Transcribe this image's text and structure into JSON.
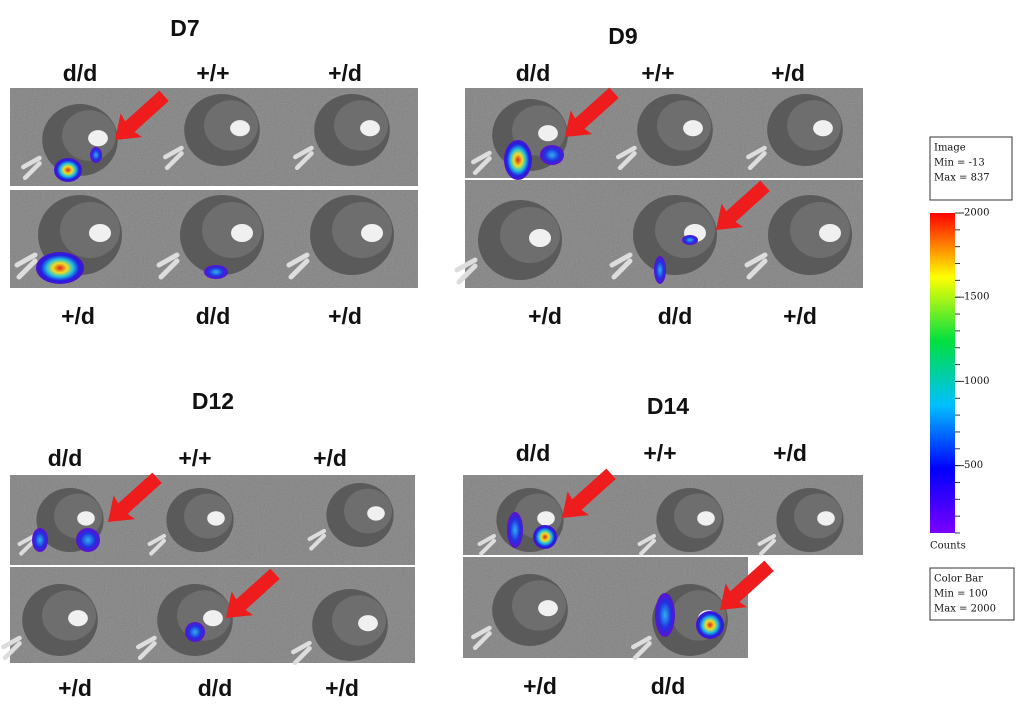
{
  "panels": [
    {
      "title": "D7",
      "top_labels": [
        "d/d",
        "+/+",
        "+/d"
      ],
      "bottom_labels": [
        "+/d",
        "d/d",
        "+/d"
      ]
    },
    {
      "title": "D9",
      "top_labels": [
        "d/d",
        "+/+",
        "+/d"
      ],
      "bottom_labels": [
        "+/d",
        "d/d",
        "+/d"
      ]
    },
    {
      "title": "D12",
      "top_labels": [
        "d/d",
        "+/+",
        "+/d"
      ],
      "bottom_labels": [
        "+/d",
        "d/d",
        "+/d"
      ]
    },
    {
      "title": "D14",
      "top_labels": [
        "d/d",
        "+/+",
        "+/d"
      ],
      "bottom_labels": [
        "+/d",
        "d/d"
      ]
    }
  ],
  "colorbar": {
    "image_box": [
      "Image",
      "Min = -13",
      "Max = 837"
    ],
    "ticks": [
      2000,
      1500,
      1000,
      500
    ],
    "range": [
      100,
      2000
    ],
    "unit": "Counts",
    "bar_box": [
      "Color Bar",
      "Min = 100",
      "Max = 2000"
    ]
  }
}
